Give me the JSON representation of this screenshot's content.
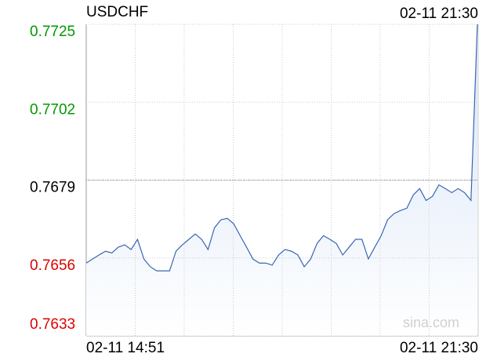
{
  "chart_data": {
    "type": "line",
    "title": "USDCHF",
    "time": "02-11 21:30",
    "x_labels": [
      "02-11 14:51",
      "02-11 21:30"
    ],
    "watermark": "sina.com",
    "ylim": [
      0.7633,
      0.7725
    ],
    "yticks": [
      0.7633,
      0.7656,
      0.7679,
      0.7702,
      0.7725
    ],
    "reference_line": 0.7679,
    "up_color": "#009900",
    "down_color": "#dd0000",
    "flat_color": "#000000",
    "color": "#3a66b4",
    "grid": true,
    "series": [
      {
        "name": "USDCHF",
        "color": "#3a66b4",
        "values": [
          0.76545,
          0.76557,
          0.76569,
          0.7658,
          0.76575,
          0.76592,
          0.76599,
          0.76585,
          0.76615,
          0.76557,
          0.76534,
          0.76522,
          0.76522,
          0.76522,
          0.7658,
          0.76599,
          0.76615,
          0.76631,
          0.76615,
          0.76585,
          0.76649,
          0.76673,
          0.76677,
          0.76661,
          0.76626,
          0.76592,
          0.76557,
          0.76545,
          0.76545,
          0.76539,
          0.76569,
          0.76585,
          0.7658,
          0.76569,
          0.76534,
          0.76557,
          0.76603,
          0.76626,
          0.76615,
          0.76603,
          0.76569,
          0.76592,
          0.76615,
          0.76615,
          0.76557,
          0.76592,
          0.76626,
          0.76673,
          0.76691,
          0.767,
          0.76707,
          0.76746,
          0.76765,
          0.7673,
          0.76742,
          0.76776,
          0.76765,
          0.76753,
          0.76765,
          0.76753,
          0.7673,
          0.7725
        ]
      }
    ]
  }
}
